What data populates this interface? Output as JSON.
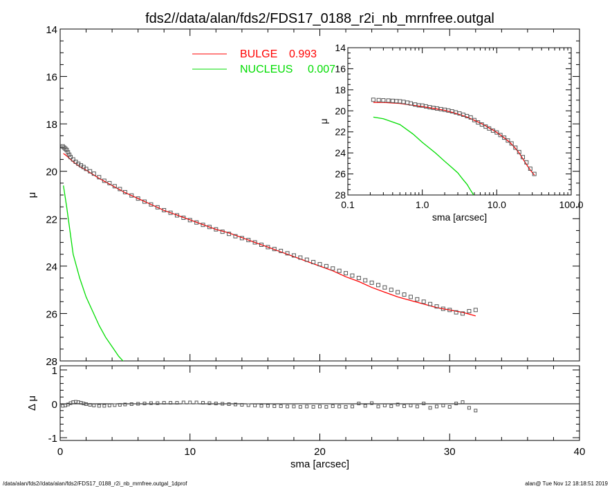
{
  "colors": {
    "bulge": "#ff0000",
    "nucleus": "#00dd00",
    "data": "#555555",
    "axes": "#000000",
    "background": "#ffffff"
  },
  "footer": {
    "left": "/data/alan/fds2//data/alan/fds2/FDS17_0188_r2i_nb_mrnfree.outgal_1dprof",
    "right": "alan@  Tue Nov 12 18:18:51 2019"
  },
  "chart_data": [
    {
      "id": "main_profile",
      "type": "line",
      "title": "fds2//data/alan/fds2/FDS17_0188_r2i_nb_mrnfree.outgal",
      "xlabel": "",
      "ylabel": "μ",
      "xlim": [
        0,
        40
      ],
      "ylim": [
        28,
        14
      ],
      "y_reversed": true,
      "grid": false,
      "legend": {
        "placement": "top-center"
      },
      "xticks": [
        0,
        10,
        20,
        30,
        40
      ],
      "yticks": [
        14,
        16,
        18,
        20,
        22,
        24,
        26,
        28
      ],
      "ytick_labels": [
        "14",
        "16",
        "18",
        "20",
        "22",
        "24",
        "26",
        "28"
      ],
      "series": [
        {
          "name": "BULGE",
          "legend_value": "0.993",
          "color": "#ff0000",
          "style": "line",
          "x": [
            0.25,
            0.5,
            1.0,
            1.5,
            2,
            3,
            4,
            5,
            6,
            7,
            8,
            9,
            10,
            11,
            12,
            13,
            14,
            15,
            16,
            17,
            18,
            19,
            20,
            21,
            22,
            23,
            24,
            25,
            26,
            27,
            28,
            29,
            30,
            31,
            32
          ],
          "y": [
            19.25,
            19.35,
            19.6,
            19.8,
            19.95,
            20.3,
            20.6,
            20.9,
            21.15,
            21.4,
            21.65,
            21.85,
            22.05,
            22.25,
            22.45,
            22.6,
            22.8,
            23.0,
            23.2,
            23.4,
            23.6,
            23.8,
            24.0,
            24.2,
            24.45,
            24.65,
            24.9,
            25.1,
            25.3,
            25.45,
            25.6,
            25.75,
            25.85,
            25.95,
            26.1
          ]
        },
        {
          "name": "NUCLEUS",
          "legend_value": "0.007",
          "color": "#00dd00",
          "style": "line",
          "x": [
            0.25,
            0.5,
            0.75,
            1.0,
            1.5,
            2,
            2.5,
            3,
            3.5,
            4,
            4.5,
            5
          ],
          "y": [
            20.6,
            21.5,
            22.5,
            23.5,
            24.5,
            25.3,
            25.9,
            26.5,
            27.0,
            27.4,
            27.8,
            28.1
          ]
        },
        {
          "name": "",
          "color": "#555555",
          "style": "squares",
          "x": [
            0.2,
            0.3,
            0.4,
            0.5,
            0.6,
            0.7,
            0.8,
            1.0,
            1.2,
            1.4,
            1.6,
            1.8,
            2.0,
            2.3,
            2.6,
            3.0,
            3.4,
            3.8,
            4.2,
            4.6,
            5.0,
            5.5,
            6.0,
            6.5,
            7.0,
            7.5,
            8.0,
            8.5,
            9.0,
            9.5,
            10.0,
            10.5,
            11.0,
            11.5,
            12.0,
            12.5,
            13.0,
            13.5,
            14.0,
            14.5,
            15.0,
            15.5,
            16.0,
            16.5,
            17.0,
            17.5,
            18.0,
            18.5,
            19.0,
            19.5,
            20.0,
            20.5,
            21.0,
            21.5,
            22.0,
            22.5,
            23.0,
            23.5,
            24.0,
            24.5,
            25.0,
            25.5,
            26.0,
            26.5,
            27.0,
            27.5,
            28.0,
            28.5,
            29.0,
            29.5,
            30.0,
            30.5,
            31.0,
            31.5,
            32.0
          ],
          "y": [
            18.95,
            19.0,
            19.05,
            19.1,
            19.2,
            19.3,
            19.4,
            19.5,
            19.6,
            19.68,
            19.75,
            19.82,
            19.9,
            20.0,
            20.1,
            20.25,
            20.4,
            20.5,
            20.63,
            20.75,
            20.88,
            21.02,
            21.15,
            21.28,
            21.4,
            21.52,
            21.64,
            21.75,
            21.86,
            21.96,
            22.06,
            22.16,
            22.26,
            22.35,
            22.45,
            22.55,
            22.64,
            22.74,
            22.82,
            22.9,
            23.0,
            23.1,
            23.2,
            23.28,
            23.36,
            23.46,
            23.55,
            23.64,
            23.73,
            23.83,
            23.92,
            24.0,
            24.1,
            24.2,
            24.3,
            24.4,
            24.5,
            24.6,
            24.7,
            24.8,
            24.9,
            25.0,
            25.1,
            25.2,
            25.3,
            25.4,
            25.5,
            25.6,
            25.7,
            25.8,
            25.85,
            25.95,
            26.0,
            25.9,
            25.85
          ]
        }
      ]
    },
    {
      "id": "residual",
      "type": "scatter",
      "xlabel": "sma [arcsec]",
      "ylabel": "Δ μ",
      "xlim": [
        0,
        40
      ],
      "ylim": [
        -1,
        1
      ],
      "xticks": [
        0,
        10,
        20,
        30,
        40
      ],
      "yticks": [
        -1,
        0,
        1
      ],
      "ytick_labels": [
        "-1",
        "0",
        "1"
      ],
      "zero_line": true,
      "series": [
        {
          "name": "",
          "color": "#555555",
          "x": [
            0.2,
            0.4,
            0.6,
            0.8,
            1.0,
            1.2,
            1.4,
            1.6,
            1.8,
            2.0,
            2.3,
            2.6,
            3.0,
            3.4,
            3.8,
            4.2,
            4.6,
            5.0,
            5.5,
            6.0,
            6.5,
            7.0,
            7.5,
            8.0,
            8.5,
            9.0,
            9.5,
            10.0,
            10.5,
            11.0,
            11.5,
            12.0,
            12.5,
            13.0,
            13.5,
            14.0,
            14.5,
            15.0,
            15.5,
            16.0,
            16.5,
            17.0,
            17.5,
            18.0,
            18.5,
            19.0,
            19.5,
            20.0,
            20.5,
            21.0,
            21.5,
            22.0,
            22.5,
            23.0,
            23.5,
            24.0,
            24.5,
            25.0,
            25.5,
            26.0,
            26.5,
            27.0,
            27.5,
            28.0,
            28.5,
            29.0,
            29.5,
            30.0,
            30.5,
            31.0,
            31.5,
            32.0
          ],
          "y": [
            -0.06,
            -0.05,
            -0.02,
            0.02,
            0.05,
            0.06,
            0.05,
            0.03,
            0.01,
            -0.01,
            -0.03,
            -0.05,
            -0.06,
            -0.06,
            -0.05,
            -0.04,
            -0.03,
            -0.02,
            -0.01,
            0.0,
            0.01,
            0.02,
            0.02,
            0.03,
            0.03,
            0.03,
            0.04,
            0.04,
            0.04,
            0.03,
            0.02,
            0.01,
            0.0,
            -0.01,
            -0.02,
            -0.03,
            -0.04,
            -0.05,
            -0.06,
            -0.06,
            -0.07,
            -0.07,
            -0.08,
            -0.08,
            -0.09,
            -0.08,
            -0.09,
            -0.08,
            -0.09,
            -0.07,
            -0.08,
            -0.09,
            -0.08,
            0.01,
            -0.06,
            0.02,
            -0.08,
            -0.05,
            -0.07,
            -0.02,
            -0.07,
            -0.05,
            -0.08,
            0.01,
            -0.12,
            -0.08,
            -0.05,
            -0.09,
            0.01,
            0.05,
            -0.12,
            -0.2
          ]
        }
      ]
    },
    {
      "id": "inset_log",
      "type": "line",
      "xlabel": "sma [arcsec]",
      "ylabel": "μ",
      "x_scale": "log",
      "xlim": [
        0.1,
        100.0
      ],
      "ylim": [
        28,
        14
      ],
      "y_reversed": true,
      "xticks": [
        0.1,
        1.0,
        10.0,
        100.0
      ],
      "xtick_labels": [
        "0.1",
        "1.0",
        "10.0",
        "100.0"
      ],
      "yticks": [
        14,
        16,
        18,
        20,
        22,
        24,
        26,
        28
      ],
      "ytick_labels": [
        "14",
        "16",
        "18",
        "20",
        "22",
        "24",
        "26",
        "28"
      ],
      "series": [
        {
          "name": "BULGE",
          "color": "#ff0000",
          "style": "line",
          "x": [
            0.22,
            0.3,
            0.5,
            0.7,
            1.0,
            1.5,
            2,
            3,
            4,
            5,
            6,
            7,
            8,
            9,
            10,
            12,
            15,
            18,
            20,
            24,
            28,
            32
          ],
          "y": [
            19.2,
            19.2,
            19.3,
            19.45,
            19.6,
            19.8,
            19.95,
            20.3,
            20.6,
            20.9,
            21.15,
            21.4,
            21.65,
            21.85,
            22.05,
            22.45,
            23.0,
            23.6,
            24.0,
            24.9,
            25.6,
            26.1
          ]
        },
        {
          "name": "NUCLEUS",
          "color": "#00dd00",
          "style": "line",
          "x": [
            0.22,
            0.3,
            0.5,
            0.75,
            1.0,
            1.5,
            2,
            2.5,
            3,
            3.5,
            4,
            4.5,
            5
          ],
          "y": [
            20.6,
            20.75,
            21.3,
            22.2,
            23.0,
            24.0,
            24.8,
            25.4,
            25.9,
            26.5,
            27.0,
            27.6,
            28.1
          ]
        },
        {
          "name": "",
          "color": "#555555",
          "style": "squares",
          "x": [
            0.22,
            0.26,
            0.3,
            0.35,
            0.4,
            0.45,
            0.5,
            0.56,
            0.63,
            0.7,
            0.8,
            0.9,
            1.0,
            1.12,
            1.26,
            1.41,
            1.58,
            1.78,
            2.0,
            2.24,
            2.51,
            2.82,
            3.16,
            3.55,
            3.98,
            4.47,
            5.0,
            5.6,
            6.3,
            7.1,
            7.9,
            8.9,
            10.0,
            11.2,
            12.6,
            14.1,
            15.8,
            17.8,
            20.0,
            22.4,
            25.1,
            28.2,
            32.0
          ],
          "y": [
            18.95,
            18.98,
            19.0,
            19.02,
            19.05,
            19.08,
            19.1,
            19.15,
            19.22,
            19.3,
            19.4,
            19.48,
            19.5,
            19.58,
            19.66,
            19.72,
            19.78,
            19.84,
            19.9,
            19.97,
            20.05,
            20.15,
            20.25,
            20.37,
            20.5,
            20.63,
            20.88,
            21.1,
            21.3,
            21.5,
            21.68,
            21.88,
            22.06,
            22.3,
            22.55,
            22.82,
            23.1,
            23.5,
            23.92,
            24.4,
            24.9,
            25.5,
            26.0
          ]
        }
      ]
    }
  ]
}
